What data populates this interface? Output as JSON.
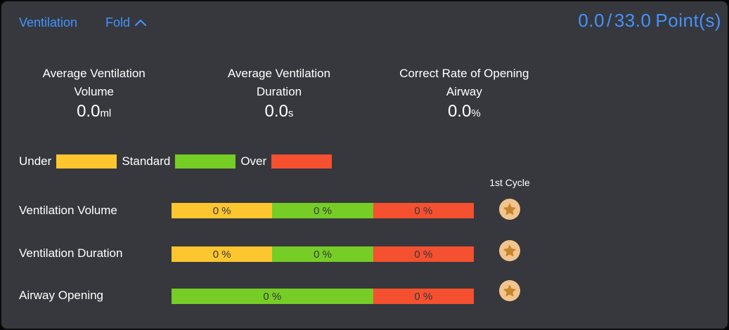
{
  "panel": {
    "title": "Ventilation",
    "fold_label": "Fold",
    "score": {
      "current": "0.0",
      "separator": "/",
      "total": "33.0",
      "unit": "Point(s)"
    }
  },
  "stats": [
    {
      "label_line1": "Average Ventilation",
      "label_line2": "Volume",
      "value": "0.0",
      "unit": "ml"
    },
    {
      "label_line1": "Average Ventilation",
      "label_line2": "Duration",
      "value": "0.0",
      "unit": "s"
    },
    {
      "label_line1": "Correct Rate of Opening",
      "label_line2": "Airway",
      "value": "0.0",
      "unit": "%"
    }
  ],
  "legend": [
    {
      "label": "Under",
      "color": "#fdc62f"
    },
    {
      "label": "Standard",
      "color": "#76cd26"
    },
    {
      "label": "Over",
      "color": "#f5502f"
    }
  ],
  "cycle_header": "1st Cycle",
  "rows": [
    {
      "label": "Ventilation Volume",
      "segments": [
        {
          "label": "0 %",
          "color": "#fdc62f",
          "width_pct": 33.33
        },
        {
          "label": "0 %",
          "color": "#76cd26",
          "width_pct": 33.34
        },
        {
          "label": "0 %",
          "color": "#f5502f",
          "width_pct": 33.33
        }
      ]
    },
    {
      "label": "Ventilation Duration",
      "segments": [
        {
          "label": "0 %",
          "color": "#fdc62f",
          "width_pct": 33.33
        },
        {
          "label": "0 %",
          "color": "#76cd26",
          "width_pct": 33.34
        },
        {
          "label": "0 %",
          "color": "#f5502f",
          "width_pct": 33.33
        }
      ]
    },
    {
      "label": "Airway Opening",
      "segments": [
        {
          "label": "0 %",
          "color": "#76cd26",
          "width_pct": 66.67
        },
        {
          "label": "0 %",
          "color": "#f5502f",
          "width_pct": 33.33
        }
      ]
    }
  ],
  "icons": {
    "fold": "chevron-up-icon",
    "cycle_badge": "star-icon"
  },
  "colors": {
    "panel_bg": "#36383d",
    "accent_blue": "#4492ff",
    "under_yellow": "#fdc62f",
    "standard_green": "#76cd26",
    "over_red": "#f5502f",
    "star_circle": "#f2c48e",
    "star_glyph": "#c8862c"
  }
}
